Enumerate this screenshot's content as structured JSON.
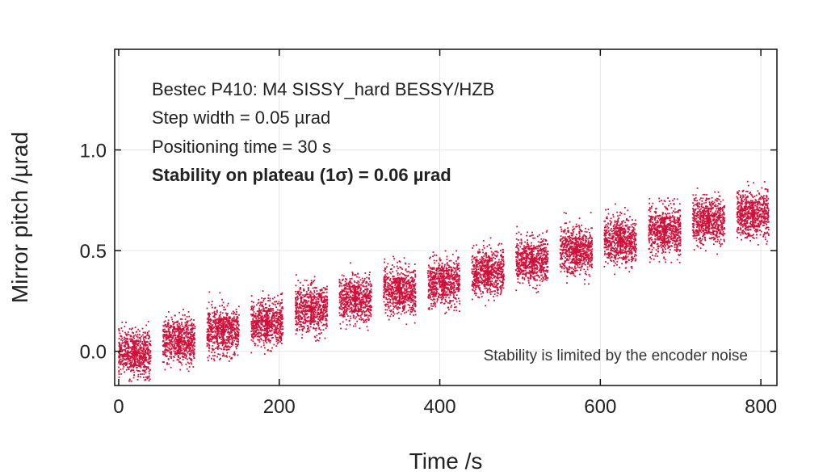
{
  "chart_data": {
    "type": "scatter",
    "title": "",
    "xlabel": "Time /s",
    "ylabel": "Mirror pitch /µrad",
    "xlim": [
      -5,
      820
    ],
    "ylim": [
      -0.17,
      1.5
    ],
    "xticks": [
      0,
      200,
      400,
      600,
      800
    ],
    "xtick_labels": [
      "0",
      "200",
      "400",
      "600",
      "800"
    ],
    "yticks": [
      0.0,
      0.5,
      1.0
    ],
    "ytick_labels": [
      "0.0",
      "0.5",
      "1.0"
    ],
    "grid": true,
    "point_color": "#d0103a",
    "annotations": [
      "Bestec P410: M4 SISSY_hard BESSY/HZB",
      "Step width = 0.05 µrad",
      "Positioning time = 30 s",
      "Stability on plateau (1σ) = 0.06 µrad"
    ],
    "note": "Stability is limited by the encoder noise",
    "plateaus": {
      "x_start": [
        0,
        55,
        110,
        165,
        220,
        275,
        330,
        385,
        440,
        495,
        550,
        605,
        660,
        715,
        770
      ],
      "x_end": [
        40,
        95,
        150,
        205,
        260,
        315,
        370,
        425,
        480,
        535,
        590,
        645,
        700,
        755,
        810
      ],
      "mean": [
        -0.01,
        0.05,
        0.1,
        0.14,
        0.21,
        0.26,
        0.3,
        0.34,
        0.39,
        0.45,
        0.5,
        0.55,
        0.6,
        0.65,
        0.68
      ],
      "std": [
        0.06,
        0.06,
        0.06,
        0.06,
        0.06,
        0.06,
        0.06,
        0.06,
        0.06,
        0.06,
        0.06,
        0.06,
        0.06,
        0.06,
        0.06
      ],
      "min": [
        -0.15,
        -0.1,
        -0.05,
        -0.02,
        0.05,
        0.1,
        0.12,
        0.18,
        0.22,
        0.28,
        0.33,
        0.38,
        0.44,
        0.48,
        0.52
      ],
      "max": [
        0.15,
        0.21,
        0.32,
        0.34,
        0.38,
        0.44,
        0.48,
        0.51,
        0.6,
        0.63,
        0.7,
        0.75,
        0.82,
        0.86,
        0.87
      ]
    }
  }
}
